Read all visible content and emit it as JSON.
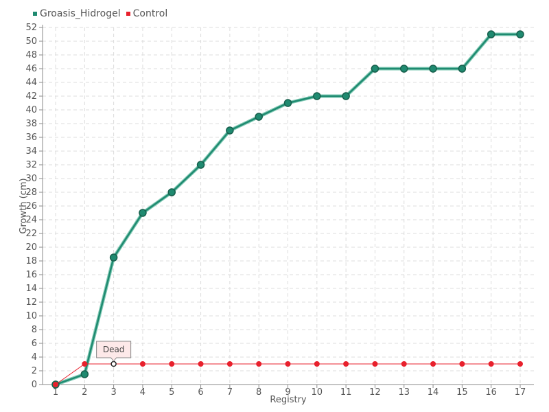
{
  "chart_data": {
    "type": "line",
    "xlabel": "Registry",
    "ylabel": "Growth (cm)",
    "categories": [
      "1",
      "2",
      "3",
      "4",
      "5",
      "6",
      "7",
      "8",
      "9",
      "10",
      "11",
      "12",
      "13",
      "14",
      "15",
      "16",
      "17"
    ],
    "ylim": [
      0,
      52
    ],
    "ytick_step": 2,
    "grid": true,
    "legend_position": "top-left",
    "series": [
      {
        "name": "Groasis_Hidrogel",
        "color": "#1f8a70",
        "values": [
          0,
          1.5,
          18.5,
          25,
          28,
          32,
          37,
          39,
          41,
          42,
          42,
          46,
          46,
          46,
          46,
          51,
          51
        ]
      },
      {
        "name": "Control",
        "color": "#e8202c",
        "values": [
          0,
          3,
          3,
          3,
          3,
          3,
          3,
          3,
          3,
          3,
          3,
          3,
          3,
          3,
          3,
          3,
          3
        ]
      }
    ],
    "annotation": {
      "text": "Dead",
      "series_index": 1,
      "point_index": 2
    }
  }
}
